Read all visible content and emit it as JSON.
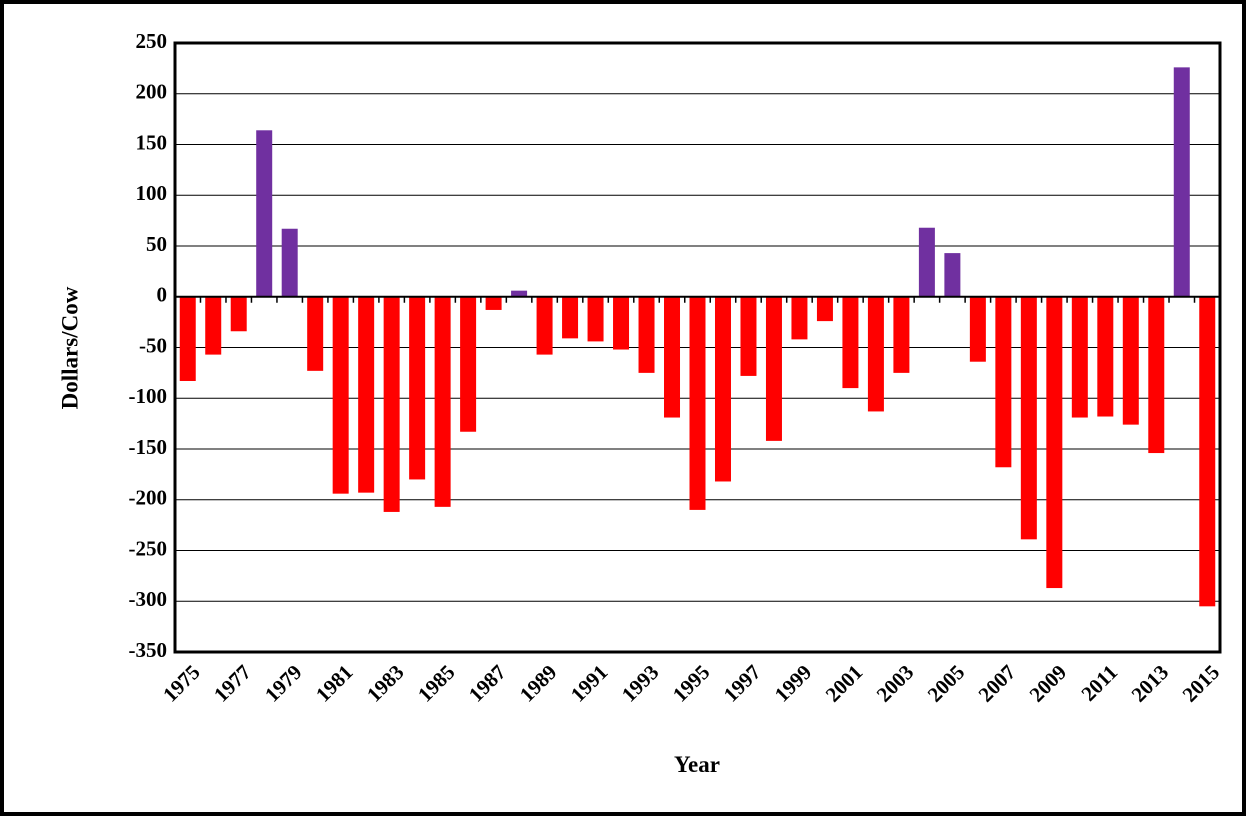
{
  "chart_data": {
    "type": "bar",
    "x_label": "Year",
    "y_label": "Dollars/Cow",
    "categories": [
      "1975",
      null,
      "1977",
      null,
      "1979",
      null,
      "1981",
      null,
      "1983",
      null,
      "1985",
      null,
      "1987",
      null,
      "1989",
      null,
      "1991",
      null,
      "1993",
      null,
      "1995",
      null,
      "1997",
      null,
      "1999",
      null,
      "2001",
      null,
      "2003",
      null,
      "2005",
      null,
      "2007",
      null,
      "2009",
      null,
      "2011",
      null,
      "2013",
      null,
      "2015"
    ],
    "values": [
      -83,
      -57,
      -34,
      164,
      67,
      -73,
      -194,
      -193,
      -212,
      -180,
      -207,
      -133,
      -13,
      6,
      -57,
      -41,
      -44,
      -52,
      -75,
      -119,
      -210,
      -182,
      -78,
      -142,
      -42,
      -24,
      -90,
      -113,
      -75,
      68,
      43,
      -64,
      -168,
      -239,
      -287,
      -119,
      -118,
      -126,
      -154,
      226,
      -305
    ],
    "positive_color": "#7030a0",
    "negative_color": "#ff0000",
    "ylim": [
      -350,
      250
    ],
    "yticks": [
      -350,
      -300,
      -250,
      -200,
      -150,
      -100,
      -50,
      0,
      50,
      100,
      150,
      200,
      250
    ],
    "grid": true
  }
}
